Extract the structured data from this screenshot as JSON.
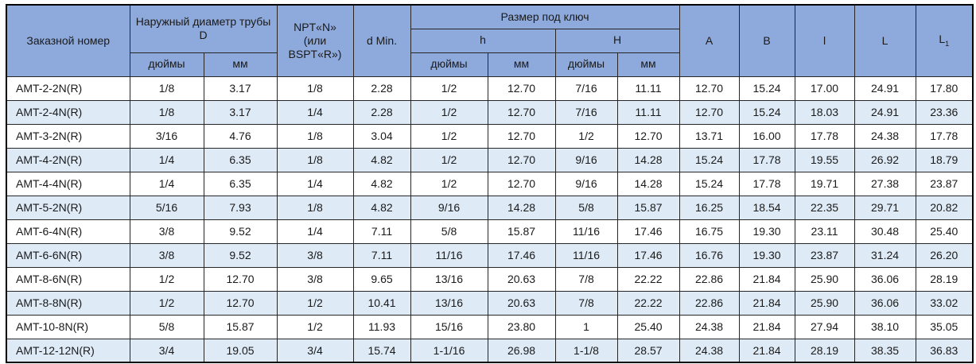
{
  "colors": {
    "header_bg": "#8ea9db",
    "row_alt_bg": "#deeaf6",
    "border": "#262626",
    "outer_border": "#000000",
    "text": "#1a1a1a"
  },
  "table": {
    "header": {
      "order_number": "Заказной номер",
      "outer_diameter": "Наружный диаметр трубы D",
      "npt_lines": [
        "NPT«N»",
        "(или",
        "BSPT«R»)"
      ],
      "d_min": "d Min.",
      "wrench_size": "Размер под ключ",
      "h_lower": "h",
      "h_upper": "H",
      "inches": "дюймы",
      "mm": "мм",
      "col_a": "A",
      "col_b": "B",
      "col_l_small": "l",
      "col_l_big": "L",
      "col_l1_base": "L",
      "col_l1_sub": "1"
    },
    "rows": [
      [
        "AMT-2-2N(R)",
        "1/8",
        "3.17",
        "1/8",
        "2.28",
        "1/2",
        "12.70",
        "7/16",
        "11.11",
        "12.70",
        "15.24",
        "17.00",
        "24.91",
        "17.80"
      ],
      [
        "AMT-2-4N(R)",
        "1/8",
        "3.17",
        "1/4",
        "2.28",
        "1/2",
        "12.70",
        "7/16",
        "11.11",
        "12.70",
        "15.24",
        "18.03",
        "24.91",
        "23.36"
      ],
      [
        "AMT-3-2N(R)",
        "3/16",
        "4.76",
        "1/8",
        "3.04",
        "1/2",
        "12.70",
        "1/2",
        "12.70",
        "13.71",
        "16.00",
        "17.78",
        "24.38",
        "17.78"
      ],
      [
        "AMT-4-2N(R)",
        "1/4",
        "6.35",
        "1/8",
        "4.82",
        "1/2",
        "12.70",
        "9/16",
        "14.28",
        "15.24",
        "17.78",
        "19.55",
        "26.92",
        "18.79"
      ],
      [
        "AMT-4-4N(R)",
        "1/4",
        "6.35",
        "1/4",
        "4.82",
        "1/2",
        "12.70",
        "9/16",
        "14.28",
        "15.24",
        "17.78",
        "19.71",
        "27.38",
        "23.87"
      ],
      [
        "AMT-5-2N(R)",
        "5/16",
        "7.93",
        "1/8",
        "4.82",
        "9/16",
        "14.28",
        "5/8",
        "15.87",
        "16.25",
        "18.54",
        "22.35",
        "29.71",
        "20.82"
      ],
      [
        "AMT-6-4N(R)",
        "3/8",
        "9.52",
        "1/4",
        "7.11",
        "5/8",
        "15.87",
        "11/16",
        "17.46",
        "16.75",
        "19.30",
        "23.11",
        "30.48",
        "25.40"
      ],
      [
        "AMT-6-6N(R)",
        "3/8",
        "9.52",
        "3/8",
        "7.11",
        "11/16",
        "17.46",
        "11/16",
        "17.46",
        "16.76",
        "19.30",
        "23.87",
        "31.24",
        "26.20"
      ],
      [
        "AMT-8-6N(R)",
        "1/2",
        "12.70",
        "3/8",
        "9.65",
        "13/16",
        "20.63",
        "7/8",
        "22.22",
        "22.86",
        "21.84",
        "25.90",
        "36.06",
        "28.19"
      ],
      [
        "AMT-8-8N(R)",
        "1/2",
        "12.70",
        "1/2",
        "10.41",
        "13/16",
        "20.63",
        "7/8",
        "22.22",
        "22.86",
        "21.84",
        "25.90",
        "36.06",
        "33.02"
      ],
      [
        "AMT-10-8N(R)",
        "5/8",
        "15.87",
        "1/2",
        "11.93",
        "15/16",
        "23.80",
        "1",
        "25.40",
        "24.38",
        "21.84",
        "27.94",
        "38.10",
        "35.05"
      ],
      [
        "AMT-12-12N(R)",
        "3/4",
        "19.05",
        "3/4",
        "15.74",
        "1-1/16",
        "26.98",
        "1-1/8",
        "28.57",
        "24.38",
        "21.84",
        "28.19",
        "38.35",
        "36.83"
      ]
    ]
  }
}
